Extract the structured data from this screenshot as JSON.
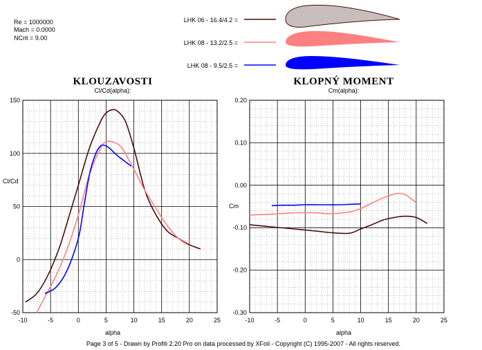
{
  "params": {
    "re": "Re = 1000000",
    "mach": "Mach = 0.0000",
    "ncrit": "NCrit = 9.00"
  },
  "legend": [
    {
      "label": "LHK 06  -  16.4/4.2 =",
      "color": "#4a0c0c",
      "fill": "#c8bebe"
    },
    {
      "label": "LHK 08 - 13.2/2.5 =",
      "color": "#ff8080",
      "fill": "#ff8080"
    },
    {
      "label": "LHK 08 - 9.5/2.5 =",
      "color": "#0000ff",
      "fill": "#0000ff"
    }
  ],
  "footer": "Page 3 of 5   -   Drawn by Profili 2.20 Pro on data processed by  XFoil - Copyright (C) 1995-2007 - All rights reserved.",
  "chart_data": [
    {
      "type": "line",
      "title": "KLOUZAVOSTI",
      "subtitle": "Cl/Cd(alpha):",
      "xlabel": "alpha",
      "ylabel": "Cl/Cd",
      "xlim": [
        -10,
        25
      ],
      "ylim": [
        -50,
        150
      ],
      "xticks": [
        -10,
        -5,
        0,
        5,
        10,
        15,
        20,
        25
      ],
      "yticks": [
        -50,
        0,
        50,
        100,
        150
      ],
      "ytick_labels": [
        "-50",
        "0",
        "50",
        "100",
        "150"
      ],
      "grid": true,
      "series": [
        {
          "color": "#4a0c0c",
          "x": [
            -9.5,
            -7.5,
            -5.5,
            -3.5,
            -2,
            0,
            2,
            4,
            5,
            6,
            7,
            8.5,
            10,
            12,
            14,
            16,
            18,
            20,
            22
          ],
          "y": [
            -40,
            -32,
            -15,
            10,
            35,
            70,
            105,
            130,
            138,
            141,
            140,
            130,
            105,
            65,
            42,
            27,
            20,
            14,
            10
          ]
        },
        {
          "color": "#ff8080",
          "x": [
            -7.5,
            -6,
            -4,
            -2,
            0,
            2,
            4,
            5,
            6,
            7,
            8,
            10,
            12,
            14,
            16,
            18,
            20
          ],
          "y": [
            -50,
            -35,
            -15,
            10,
            42,
            80,
            105,
            111,
            111,
            109,
            104,
            85,
            65,
            48,
            32,
            20,
            13
          ]
        },
        {
          "color": "#0000ff",
          "x": [
            -6,
            -4,
            -2,
            0,
            1,
            2,
            3,
            4,
            5,
            6,
            7,
            8,
            9.5
          ],
          "y": [
            -32,
            -26,
            -10,
            20,
            50,
            80,
            98,
            107,
            107,
            103,
            98,
            94,
            88
          ]
        }
      ]
    },
    {
      "type": "line",
      "title": "KLOPNÝ MOMENT",
      "subtitle": "Cm(alpha):",
      "xlabel": "alpha",
      "ylabel": "Cm",
      "xlim": [
        -10,
        25
      ],
      "ylim": [
        -0.3,
        0.2
      ],
      "xticks": [
        -10,
        -5,
        0,
        5,
        10,
        15,
        20,
        25
      ],
      "yticks": [
        -0.3,
        -0.2,
        -0.1,
        0.0,
        0.1,
        0.2
      ],
      "ytick_labels": [
        "-0.30",
        "-0.20",
        "-0.10",
        "0.00",
        "0.10",
        "0.20"
      ],
      "grid": true,
      "series": [
        {
          "color": "#4a0c0c",
          "x": [
            -10,
            -6,
            -2,
            2,
            5,
            8,
            10,
            12,
            14,
            16,
            18,
            20,
            22
          ],
          "y": [
            -0.093,
            -0.098,
            -0.103,
            -0.108,
            -0.112,
            -0.113,
            -0.103,
            -0.093,
            -0.082,
            -0.076,
            -0.073,
            -0.076,
            -0.09
          ]
        },
        {
          "color": "#ff8080",
          "x": [
            -10,
            -6,
            -2,
            2,
            4,
            6,
            8,
            10,
            12,
            14,
            16,
            17,
            18,
            19,
            20
          ],
          "y": [
            -0.07,
            -0.068,
            -0.065,
            -0.065,
            -0.067,
            -0.066,
            -0.063,
            -0.055,
            -0.042,
            -0.03,
            -0.021,
            -0.019,
            -0.022,
            -0.031,
            -0.041
          ]
        },
        {
          "color": "#0000ff",
          "x": [
            -6,
            -4,
            -2,
            0,
            2,
            4,
            6,
            8,
            10
          ],
          "y": [
            -0.048,
            -0.047,
            -0.047,
            -0.046,
            -0.046,
            -0.046,
            -0.046,
            -0.045,
            -0.044
          ]
        }
      ]
    }
  ]
}
